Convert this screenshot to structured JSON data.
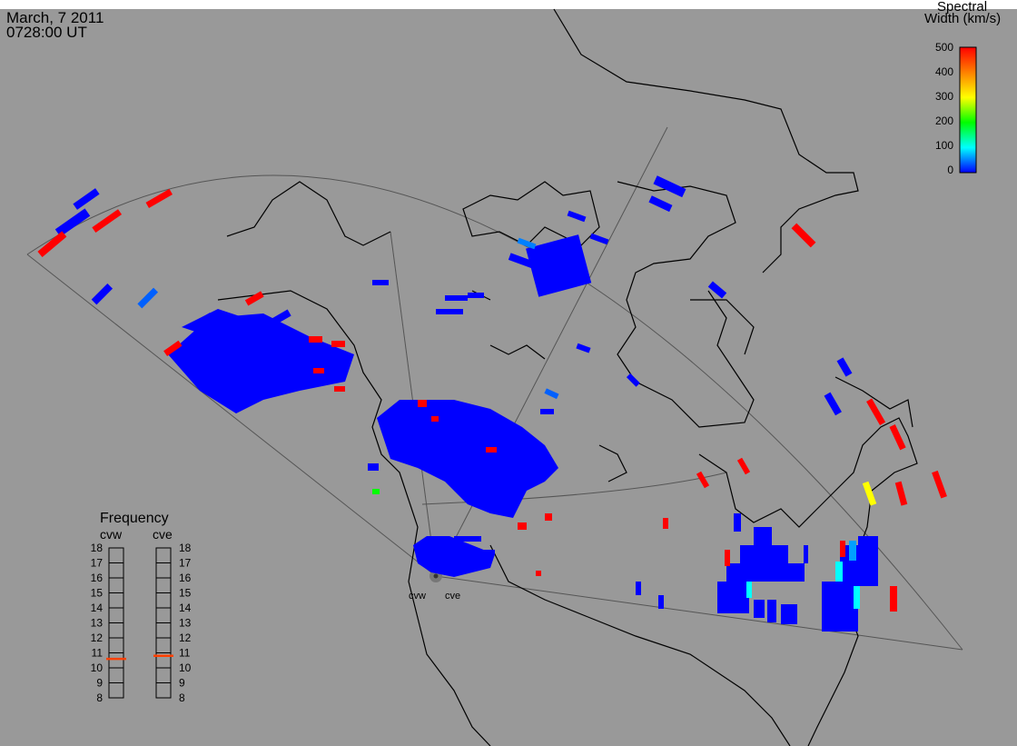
{
  "header": {
    "date": "March, 7 2011",
    "time": "0728:00 UT"
  },
  "legend": {
    "title_line1": "Spectral",
    "title_line2": "Width (km/s)",
    "ticks": [
      "0",
      "100",
      "200",
      "300",
      "400",
      "500"
    ],
    "colors": [
      "#0000ff",
      "#00ffff",
      "#00ff00",
      "#ffff00",
      "#ff8000",
      "#ff0000"
    ]
  },
  "radars": {
    "west": "cvw",
    "east": "cve"
  },
  "frequency": {
    "title": "Frequency",
    "labels": [
      "18",
      "17",
      "16",
      "15",
      "14",
      "13",
      "12",
      "11",
      "10",
      "9",
      "8"
    ],
    "cvw_value": 10.6,
    "cve_value": 10.8,
    "marker_color": "#ff4000"
  },
  "colors": {
    "background": "#999999",
    "scatter": "#0000ff",
    "high_width": "#ff0000"
  }
}
